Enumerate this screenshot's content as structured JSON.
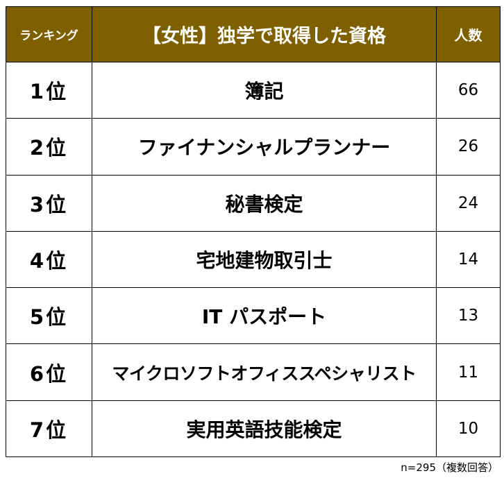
{
  "header": {
    "rank": "ランキング",
    "title": "【女性】独学で取得した資格",
    "count": "人数"
  },
  "rows": [
    {
      "rank": "1位",
      "name": "簿記",
      "count": "66"
    },
    {
      "rank": "2位",
      "name": "ファイナンシャルプランナー",
      "count": "26"
    },
    {
      "rank": "3位",
      "name": "秘書検定",
      "count": "24"
    },
    {
      "rank": "4位",
      "name": "宅地建物取引士",
      "count": "14"
    },
    {
      "rank": "5位",
      "name": "IT パスポート",
      "count": "13"
    },
    {
      "rank": "6位",
      "name": "マイクロソフトオフィススペシャリスト",
      "count": "11"
    },
    {
      "rank": "7位",
      "name": "実用英語技能検定",
      "count": "10"
    }
  ],
  "footnote": "n=295（複数回答）",
  "colors": {
    "header_bg": "#7f6000",
    "header_text": "#ffffff",
    "border": "#000000"
  }
}
